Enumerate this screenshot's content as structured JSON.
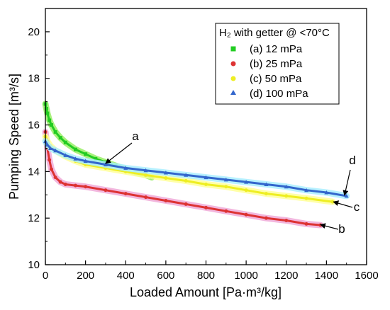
{
  "chart_data": {
    "type": "scatter",
    "title": "",
    "xlabel": "Loaded Amount [Pa·m³/kg]",
    "ylabel": "Pumping Speed [m³/s]",
    "xlim": [
      0,
      1600
    ],
    "ylim": [
      10,
      21
    ],
    "xticks": [
      0,
      200,
      400,
      600,
      800,
      1000,
      1200,
      1400,
      1600
    ],
    "yticks": [
      10,
      12,
      14,
      16,
      18,
      20
    ],
    "grid": false,
    "legend": {
      "placement": "top-right",
      "title": "H₂ with getter @ <70°C"
    },
    "series": [
      {
        "name": "(a) 12 mPa",
        "label": "a",
        "marker": "square",
        "color": "#22cc22",
        "halo_color": "#99ee66",
        "x": [
          0,
          5,
          10,
          20,
          30,
          50,
          75,
          100,
          150,
          200,
          250,
          300,
          350,
          400,
          450,
          500,
          530
        ],
        "y": [
          16.9,
          16.7,
          16.5,
          16.2,
          16.0,
          15.7,
          15.45,
          15.25,
          14.95,
          14.75,
          14.55,
          14.4,
          14.25,
          14.1,
          13.95,
          13.85,
          13.75
        ]
      },
      {
        "name": "(b) 25 mPa",
        "label": "b",
        "marker": "circle",
        "color": "#dd3333",
        "halo_color": "#f0aad8",
        "x": [
          0,
          5,
          10,
          20,
          30,
          50,
          75,
          100,
          150,
          200,
          300,
          400,
          500,
          600,
          700,
          800,
          900,
          1000,
          1100,
          1200,
          1300,
          1370
        ],
        "y": [
          15.7,
          15.4,
          15.0,
          14.5,
          14.1,
          13.75,
          13.55,
          13.45,
          13.4,
          13.35,
          13.2,
          13.05,
          12.9,
          12.75,
          12.6,
          12.45,
          12.3,
          12.15,
          12.0,
          11.9,
          11.75,
          11.7
        ]
      },
      {
        "name": "(c) 50 mPa",
        "label": "c",
        "marker": "circle",
        "color": "#eeee22",
        "halo_color": "#ffff99",
        "x": [
          0,
          10,
          25,
          50,
          100,
          150,
          200,
          300,
          400,
          500,
          600,
          700,
          800,
          900,
          1000,
          1100,
          1200,
          1300,
          1430
        ],
        "y": [
          15.5,
          15.3,
          15.1,
          14.9,
          14.65,
          14.45,
          14.3,
          14.15,
          14.0,
          13.85,
          13.72,
          13.6,
          13.45,
          13.35,
          13.2,
          13.05,
          12.95,
          12.85,
          12.7
        ]
      },
      {
        "name": "(d) 100 mPa",
        "label": "d",
        "marker": "triangle",
        "color": "#3366cc",
        "halo_color": "#aaeeff",
        "x": [
          0,
          10,
          25,
          50,
          100,
          150,
          200,
          300,
          400,
          500,
          600,
          700,
          800,
          900,
          1000,
          1100,
          1200,
          1300,
          1400,
          1500
        ],
        "y": [
          15.3,
          15.15,
          15.0,
          14.9,
          14.7,
          14.55,
          14.45,
          14.3,
          14.15,
          14.05,
          13.95,
          13.85,
          13.75,
          13.65,
          13.55,
          13.45,
          13.35,
          13.2,
          13.1,
          12.95
        ]
      }
    ],
    "annotations": [
      {
        "text": "a",
        "series": "(a) 12 mPa",
        "x": 300,
        "y": 14.35
      },
      {
        "text": "d",
        "series": "(d) 100 mPa",
        "x": 1490,
        "y": 12.98
      },
      {
        "text": "c",
        "series": "(c) 50 mPa",
        "x": 1435,
        "y": 12.7
      },
      {
        "text": "b",
        "series": "(b) 25 mPa",
        "x": 1370,
        "y": 11.72
      }
    ]
  }
}
